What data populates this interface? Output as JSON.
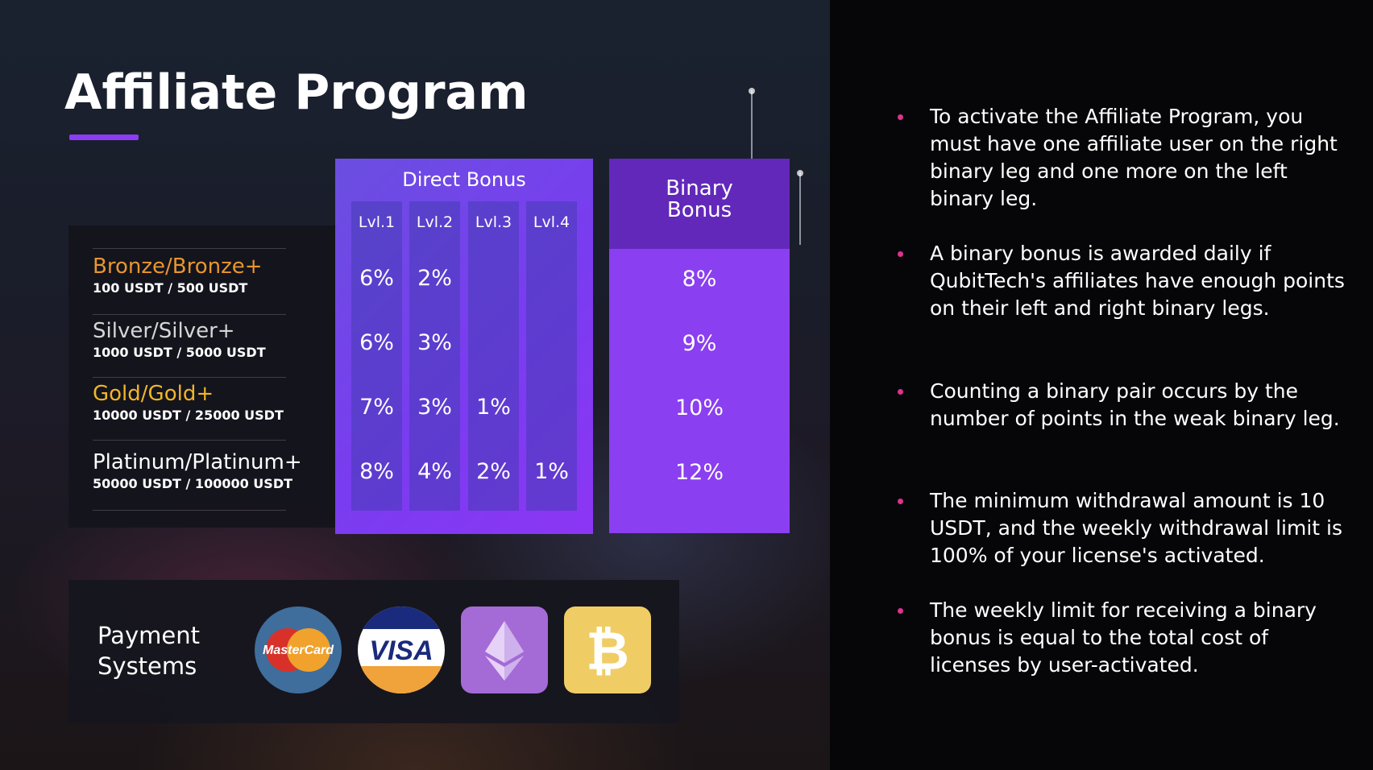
{
  "title": "Affiliate Program",
  "accent_color": "#8c3cf5",
  "tiers": [
    {
      "name": "Bronze/Bronze+",
      "price": "100 USDT / 500 USDT",
      "color": "#e8962e"
    },
    {
      "name": "Silver/Silver+",
      "price": "1000 USDT / 5000 USDT",
      "color": "#d6d6d6"
    },
    {
      "name": "Gold/Gold+",
      "price": "10000 USDT / 25000 USDT",
      "color": "#f1b627"
    },
    {
      "name": "Platinum/Platinum+",
      "price": "50000 USDT / 100000 USDT",
      "color": "#ffffff"
    }
  ],
  "direct_bonus": {
    "title": "Direct Bonus",
    "levels": [
      {
        "label": "Lvl.1",
        "values": [
          "6%",
          "6%",
          "7%",
          "8%"
        ]
      },
      {
        "label": "Lvl.2",
        "values": [
          "2%",
          "3%",
          "3%",
          "4%"
        ]
      },
      {
        "label": "Lvl.3",
        "values": [
          "",
          "",
          "1%",
          "2%"
        ]
      },
      {
        "label": "Lvl.4",
        "values": [
          "",
          "",
          "",
          "1%"
        ]
      }
    ]
  },
  "binary_bonus": {
    "title_line1": "Binary",
    "title_line2": "Bonus",
    "values": [
      "8%",
      "9%",
      "10%",
      "12%"
    ]
  },
  "payment": {
    "label_line1": "Payment",
    "label_line2": "Systems",
    "mastercard_text": "MasterCard",
    "visa_text": "VISA"
  },
  "bullets": [
    "To activate the Affiliate Program, you must have one affiliate user on the right binary leg and one more on the left binary leg.",
    "A binary bonus is awarded daily if QubitTech's affiliates have enough points on their left and right binary legs.",
    "Counting a binary pair occurs by the number of points in the weak binary leg.",
    "The minimum withdrawal amount is 10 USDT, and the weekly withdrawal limit is 100% of your license's activated.",
    "The weekly limit for receiving a binary bonus is equal to the total cost of licenses by user-activated."
  ]
}
